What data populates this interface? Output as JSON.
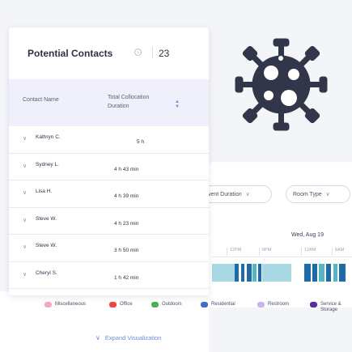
{
  "card": {
    "title": "Potential Contacts",
    "count": "23",
    "columns": {
      "name": "Contact Name",
      "duration_line1": "Total Collocation",
      "duration_line2": "Duration"
    },
    "rows": [
      {
        "name": "Kathryn C.",
        "duration": "5 h"
      },
      {
        "name": "Sydney L.",
        "duration": "4 h 43 min"
      },
      {
        "name": "Lisa H.",
        "duration": "4 h 39 min"
      },
      {
        "name": "Steve W.",
        "duration": "4 h 23 min"
      },
      {
        "name": "Steve W.",
        "duration": "3 h 50 min"
      },
      {
        "name": "Cheryl S.",
        "duration": "1 h 42 min"
      }
    ]
  },
  "filters": {
    "event_duration": "vent Duration",
    "room_type": "Room Type"
  },
  "timeline": {
    "date": "Wed, Aug 19",
    "ticks": [
      "12PM",
      "6PM",
      "12AM",
      "6AM"
    ]
  },
  "legend": [
    {
      "label": "Miscellaneous",
      "color": "#f3a9b8"
    },
    {
      "label": "Office",
      "color": "#e8463f"
    },
    {
      "label": "Outdoors",
      "color": "#4caf50"
    },
    {
      "label": "Residential",
      "color": "#3f6fc9"
    },
    {
      "label": "Restroom",
      "color": "#c9b3ea"
    },
    {
      "label": "Service &",
      "label2": "Storage",
      "color": "#5a2ca0"
    }
  ],
  "expand_label": "Expand Visualization",
  "colors": {
    "accent": "#6f8bd9",
    "virus": "#32364a",
    "bar_blue": "#1f6ba8",
    "bar_teal": "#57b6c6",
    "bar_light": "#a8d9e2"
  }
}
